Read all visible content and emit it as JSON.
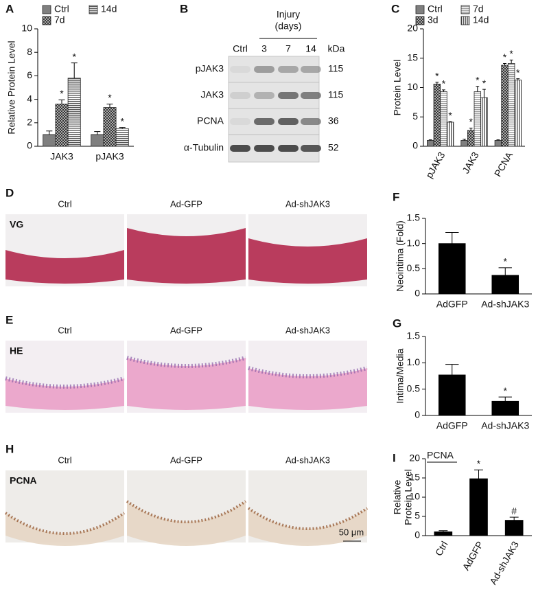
{
  "chart_data": [
    {
      "panel": "A",
      "type": "bar",
      "ylabel": "Relative Protein Level",
      "categories": [
        "JAK3",
        "pJAK3"
      ],
      "ylim": [
        0,
        10
      ],
      "yticks": [
        0,
        2,
        4,
        6,
        8,
        10
      ],
      "series": [
        {
          "name": "Ctrl",
          "color": "#7f7f7f",
          "pattern": "solid",
          "values": [
            1.0,
            1.0
          ],
          "errors": [
            0.3,
            0.25
          ]
        },
        {
          "name": "7d",
          "color": "#333333",
          "pattern": "crosshatch",
          "values": [
            3.6,
            3.3
          ],
          "errors": [
            0.35,
            0.3
          ],
          "annotations": [
            "*",
            "*"
          ]
        },
        {
          "name": "14d",
          "color": "#555555",
          "pattern": "hlines",
          "values": [
            5.8,
            1.5
          ],
          "errors": [
            1.3,
            0.1
          ],
          "annotations": [
            "*",
            "*"
          ]
        }
      ]
    },
    {
      "panel": "C",
      "type": "bar",
      "ylabel": "Protein Level",
      "categories": [
        "pJAK3",
        "JAK3",
        "PCNA"
      ],
      "ylim": [
        0,
        20
      ],
      "yticks": [
        0,
        5,
        10,
        15,
        20
      ],
      "series": [
        {
          "name": "Ctrl",
          "color": "#7f7f7f",
          "pattern": "solid",
          "values": [
            1.0,
            1.0,
            1.0
          ],
          "errors": [
            0.1,
            0.2,
            0.1
          ]
        },
        {
          "name": "3d",
          "color": "#333333",
          "pattern": "crosshatch",
          "values": [
            10.6,
            2.7,
            13.8
          ],
          "errors": [
            0.3,
            0.4,
            0.3
          ],
          "annotations": [
            "*",
            "*",
            "*"
          ]
        },
        {
          "name": "7d",
          "color": "#999999",
          "pattern": "hlines",
          "values": [
            9.3,
            9.3,
            14.1
          ],
          "errors": [
            0.3,
            0.9,
            0.6
          ],
          "annotations": [
            "*",
            "*",
            "*"
          ]
        },
        {
          "name": "14d",
          "color": "#555555",
          "pattern": "vlines",
          "values": [
            4.1,
            8.3,
            11.3
          ],
          "errors": [
            0.1,
            1.4,
            0.2
          ],
          "annotations": [
            "*",
            "*",
            "*"
          ]
        }
      ]
    },
    {
      "panel": "F",
      "type": "bar",
      "ylabel": "Neointima (Fold)",
      "categories": [
        "AdGFP",
        "Ad-shJAK3"
      ],
      "values": [
        1.0,
        0.37
      ],
      "errors": [
        0.22,
        0.15
      ],
      "annotations": [
        null,
        "*"
      ],
      "color": "#000000",
      "ylim": [
        0,
        1.5
      ],
      "yticks": [
        0,
        0.5,
        {
          "value": 1,
          "label": "1.0"
        },
        1.5
      ]
    },
    {
      "panel": "G",
      "type": "bar",
      "ylabel": "Intima/Media",
      "categories": [
        "AdGFP",
        "Ad-shJAK3"
      ],
      "values": [
        0.77,
        0.27
      ],
      "errors": [
        0.2,
        0.08
      ],
      "annotations": [
        null,
        "*"
      ],
      "color": "#000000",
      "ylim": [
        0,
        1.5
      ],
      "yticks": [
        0,
        0.5,
        {
          "value": 1,
          "label": "1.0"
        },
        1.5
      ]
    },
    {
      "panel": "I",
      "type": "bar",
      "label": "PCNA",
      "ylabel": [
        "Relative",
        "Protein Level"
      ],
      "categories": [
        "Ctrl",
        "AdGFP",
        "Ad-shJAK3"
      ],
      "values": [
        1.0,
        14.8,
        4.0
      ],
      "errors": [
        0.3,
        2.3,
        0.8
      ],
      "annotations": [
        null,
        "*",
        "#"
      ],
      "color": "#000000",
      "ylim": [
        0,
        20
      ],
      "yticks": [
        0,
        5,
        10,
        15,
        20
      ]
    }
  ],
  "blot": {
    "panel": "B",
    "group_label": [
      "Injury",
      "(days)"
    ],
    "lanes": [
      "Ctrl",
      "3",
      "7",
      "14"
    ],
    "unit": "kDa",
    "rows": [
      {
        "name": "pJAK3",
        "kda": 115
      },
      {
        "name": "JAK3",
        "kda": 115
      },
      {
        "name": "PCNA",
        "kda": 36
      },
      {
        "name": "α-Tubulin",
        "kda": 52
      }
    ]
  },
  "histology": {
    "panels": [
      {
        "panel": "D",
        "stain": "VG",
        "columns": [
          "Ctrl",
          "Ad-GFP",
          "Ad-shJAK3"
        ]
      },
      {
        "panel": "E",
        "stain": "HE",
        "columns": [
          "Ctrl",
          "Ad-GFP",
          "Ad-shJAK3"
        ]
      },
      {
        "panel": "H",
        "stain": "PCNA",
        "columns": [
          "Ctrl",
          "Ad-GFP",
          "Ad-shJAK3"
        ]
      }
    ],
    "scale_bar": "50 μm"
  }
}
